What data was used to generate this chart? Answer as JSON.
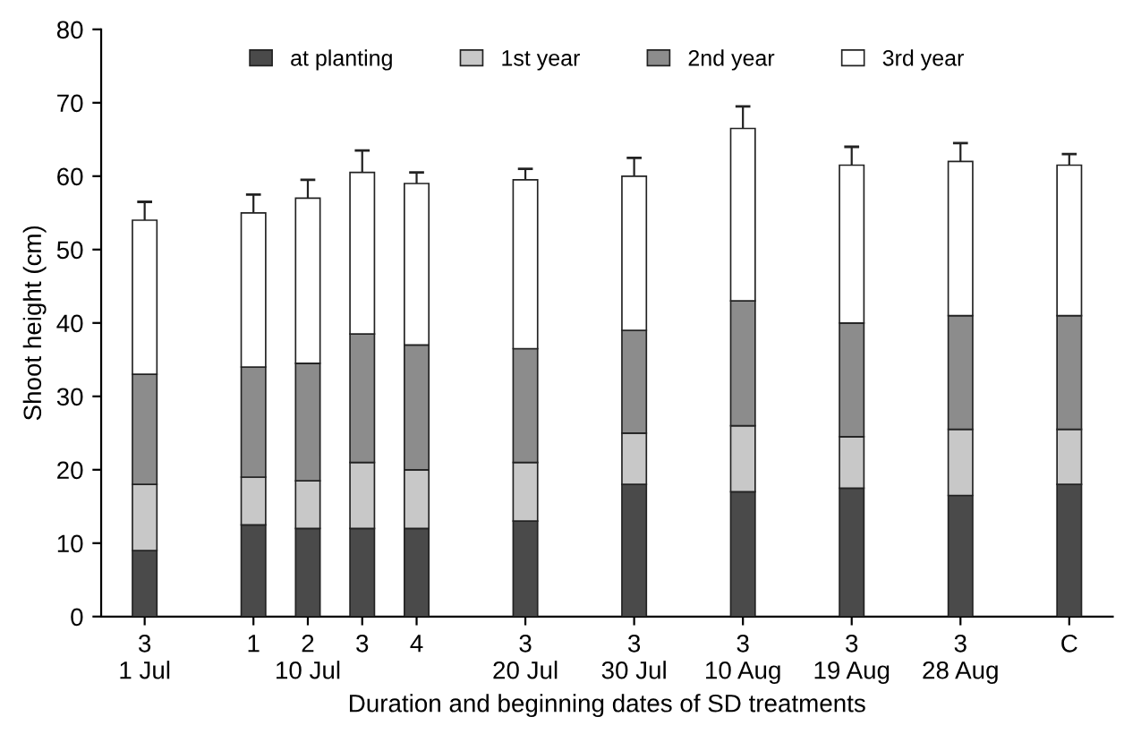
{
  "chart_data": {
    "type": "bar",
    "stacked": true,
    "xlabel": "Duration and beginning dates of SD treatments",
    "ylabel": "Shoot height (cm)",
    "categories": [
      "3\n1 Jul",
      null,
      "1",
      "2\n10 Jul",
      "3",
      "4",
      null,
      "3\n20 Jul",
      null,
      "3\n30 Jul",
      null,
      "3\n10 Aug",
      null,
      "3\n19 Aug",
      null,
      "3\n28 Aug",
      null,
      "C"
    ],
    "series": [
      {
        "name": "at planting",
        "color": "#4a4a4a",
        "values": [
          9,
          null,
          12.5,
          12,
          12,
          12,
          null,
          13,
          null,
          18,
          null,
          17,
          null,
          17.5,
          null,
          16.5,
          null,
          18
        ]
      },
      {
        "name": "1st year",
        "color": "#c8c8c8",
        "values": [
          9,
          null,
          6.5,
          6.5,
          9,
          8,
          null,
          8,
          null,
          7,
          null,
          9,
          null,
          7,
          null,
          9,
          null,
          7.5
        ]
      },
      {
        "name": "2nd year",
        "color": "#8c8c8c",
        "values": [
          15,
          null,
          15,
          16,
          17.5,
          17,
          null,
          15.5,
          null,
          14,
          null,
          17,
          null,
          15.5,
          null,
          15.5,
          null,
          15.5
        ]
      },
      {
        "name": "3rd year",
        "color": "#ffffff",
        "values": [
          21,
          null,
          21,
          22.5,
          22,
          22,
          null,
          23,
          null,
          21,
          null,
          23.5,
          null,
          21.5,
          null,
          21,
          null,
          20.5
        ],
        "errors": [
          2.5,
          null,
          2.5,
          2.5,
          3,
          1.5,
          null,
          1.5,
          null,
          2.5,
          null,
          3,
          null,
          2.5,
          null,
          2.5,
          null,
          1.5
        ]
      }
    ],
    "ylim": [
      0,
      80
    ],
    "yticks": [
      0,
      10,
      20,
      30,
      40,
      50,
      60,
      70,
      80
    ],
    "legend": "top",
    "grid": false
  }
}
